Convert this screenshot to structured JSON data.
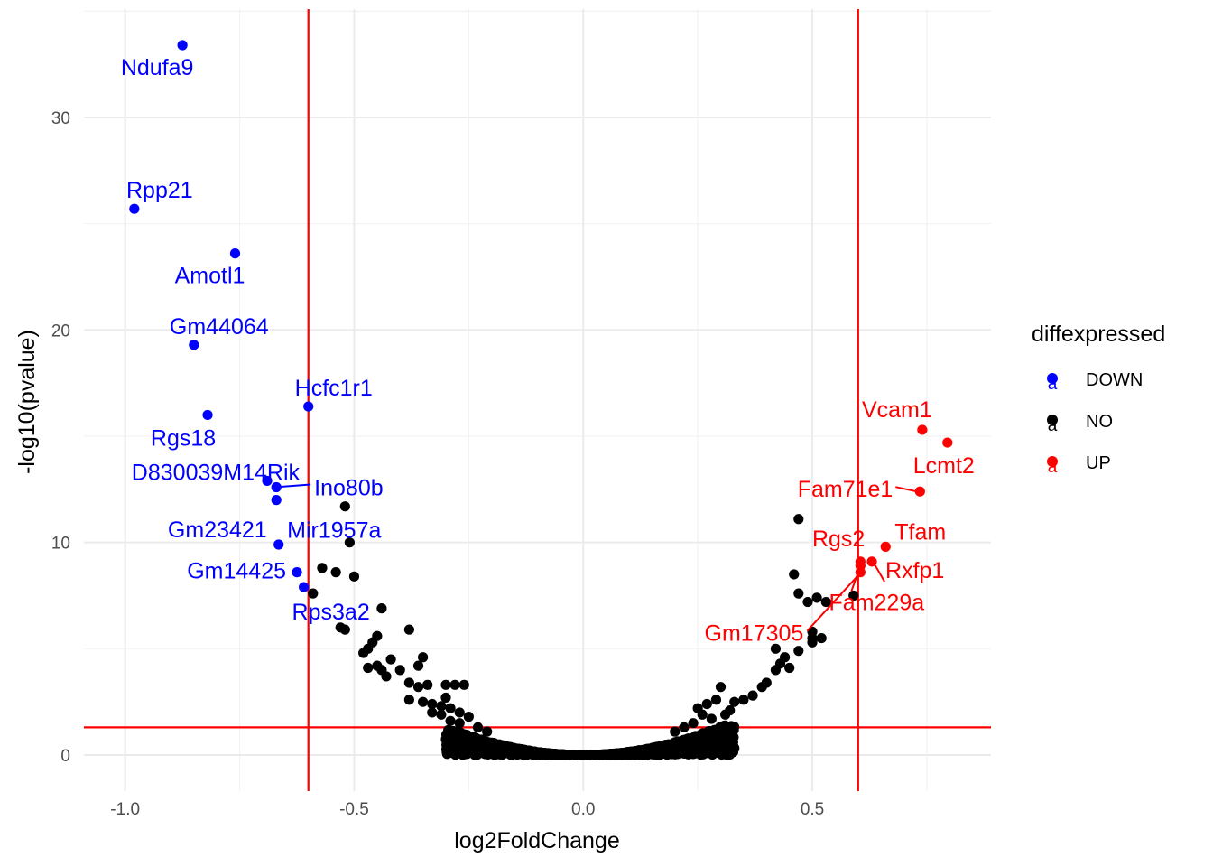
{
  "chart_data": {
    "type": "scatter",
    "xlabel": "log2FoldChange",
    "ylabel": "-log10(pvalue)",
    "xlim": [
      -1.09,
      0.89
    ],
    "ylim": [
      -1.7,
      35.1
    ],
    "x_ticks": [
      -1.0,
      -0.5,
      0.0,
      0.5
    ],
    "x_tick_labels": [
      "-1.0",
      "-0.5",
      "0.0",
      "0.5"
    ],
    "y_ticks": [
      0,
      10,
      20,
      30
    ],
    "y_tick_labels": [
      "0",
      "10",
      "20",
      "30"
    ],
    "grid": true,
    "thresholds": {
      "log2fc": [
        -0.6,
        0.6
      ],
      "neg_log10_p": 1.3,
      "color": "#ff0000"
    },
    "legend": {
      "title": "diffexpressed",
      "position": "right",
      "items": [
        {
          "label": "DOWN",
          "color": "#0000ff"
        },
        {
          "label": "NO",
          "color": "#000000"
        },
        {
          "label": "UP",
          "color": "#ff0000"
        }
      ]
    },
    "colors": {
      "DOWN": "#0000ff",
      "NO": "#000000",
      "UP": "#ff0000"
    },
    "labeled_points": [
      {
        "gene": "Ndufa9",
        "x": -0.875,
        "y": 33.4,
        "group": "DOWN"
      },
      {
        "gene": "Rpp21",
        "x": -0.98,
        "y": 25.7,
        "group": "DOWN"
      },
      {
        "gene": "Amotl1",
        "x": -0.76,
        "y": 23.6,
        "group": "DOWN"
      },
      {
        "gene": "Gm44064",
        "x": -0.85,
        "y": 19.3,
        "group": "DOWN"
      },
      {
        "gene": "Hcfc1r1",
        "x": -0.6,
        "y": 16.4,
        "group": "DOWN"
      },
      {
        "gene": "Rgs18",
        "x": -0.82,
        "y": 16.0,
        "group": "DOWN"
      },
      {
        "gene": "D830039M14Rik",
        "x": -0.69,
        "y": 12.9,
        "group": "DOWN"
      },
      {
        "gene": "Ino80b",
        "x": -0.67,
        "y": 12.6,
        "group": "DOWN"
      },
      {
        "gene": "Mir1957a",
        "x": -0.67,
        "y": 12.0,
        "group": "DOWN"
      },
      {
        "gene": "Gm23421",
        "x": -0.665,
        "y": 9.9,
        "group": "DOWN"
      },
      {
        "gene": "Gm14425",
        "x": -0.625,
        "y": 8.6,
        "group": "DOWN"
      },
      {
        "gene": "Rps3a2",
        "x": -0.61,
        "y": 7.9,
        "group": "DOWN"
      },
      {
        "gene": "Vcam1",
        "x": 0.74,
        "y": 15.3,
        "group": "UP"
      },
      {
        "gene": "Lcmt2",
        "x": 0.795,
        "y": 14.7,
        "group": "UP"
      },
      {
        "gene": "Fam71e1",
        "x": 0.735,
        "y": 12.4,
        "group": "UP"
      },
      {
        "gene": "Tfam",
        "x": 0.66,
        "y": 9.8,
        "group": "UP"
      },
      {
        "gene": "Rgs2",
        "x": 0.605,
        "y": 9.1,
        "group": "UP"
      },
      {
        "gene": "Rxfp1",
        "x": 0.63,
        "y": 9.1,
        "group": "UP"
      },
      {
        "gene": "Fam229a",
        "x": 0.605,
        "y": 8.9,
        "group": "UP"
      },
      {
        "gene": "Gm17305",
        "x": 0.605,
        "y": 8.6,
        "group": "UP"
      }
    ],
    "background_points": [
      [
        -0.52,
        11.7
      ],
      [
        -0.51,
        10.0
      ],
      [
        -0.5,
        8.4
      ],
      [
        -0.57,
        8.8
      ],
      [
        -0.54,
        8.6
      ],
      [
        -0.59,
        7.6
      ],
      [
        -0.44,
        6.9
      ],
      [
        -0.53,
        6.0
      ],
      [
        -0.52,
        5.9
      ],
      [
        -0.38,
        5.9
      ],
      [
        -0.45,
        5.6
      ],
      [
        -0.46,
        5.3
      ],
      [
        -0.47,
        5.0
      ],
      [
        -0.48,
        4.8
      ],
      [
        -0.35,
        4.6
      ],
      [
        -0.42,
        4.5
      ],
      [
        -0.36,
        4.2
      ],
      [
        -0.4,
        4.0
      ],
      [
        -0.44,
        4.0
      ],
      [
        -0.45,
        4.2
      ],
      [
        -0.47,
        4.1
      ],
      [
        -0.43,
        3.7
      ],
      [
        -0.38,
        3.4
      ],
      [
        -0.36,
        3.2
      ],
      [
        -0.34,
        3.3
      ],
      [
        -0.3,
        3.3
      ],
      [
        -0.28,
        3.3
      ],
      [
        -0.26,
        3.3
      ],
      [
        -0.3,
        2.7
      ],
      [
        -0.38,
        2.6
      ],
      [
        -0.35,
        2.5
      ],
      [
        -0.33,
        2.4
      ],
      [
        -0.31,
        2.3
      ],
      [
        -0.29,
        2.2
      ],
      [
        -0.27,
        2.0
      ],
      [
        -0.25,
        1.8
      ],
      [
        -0.33,
        2.0
      ],
      [
        -0.31,
        1.9
      ],
      [
        -0.29,
        1.6
      ],
      [
        -0.27,
        1.5
      ],
      [
        -0.23,
        1.3
      ],
      [
        -0.21,
        1.1
      ],
      [
        0.47,
        11.1
      ],
      [
        0.46,
        8.5
      ],
      [
        0.47,
        7.6
      ],
      [
        0.51,
        7.4
      ],
      [
        0.49,
        7.2
      ],
      [
        0.53,
        7.2
      ],
      [
        0.59,
        7.5
      ],
      [
        0.42,
        5.0
      ],
      [
        0.44,
        4.6
      ],
      [
        0.5,
        5.8
      ],
      [
        0.52,
        5.5
      ],
      [
        0.5,
        5.5
      ],
      [
        0.5,
        5.3
      ],
      [
        0.47,
        4.9
      ],
      [
        0.43,
        4.3
      ],
      [
        0.45,
        4.1
      ],
      [
        0.42,
        4.0
      ],
      [
        0.4,
        3.4
      ],
      [
        0.39,
        3.2
      ],
      [
        0.37,
        2.8
      ],
      [
        0.35,
        2.6
      ],
      [
        0.3,
        3.2
      ],
      [
        0.29,
        2.6
      ],
      [
        0.27,
        2.4
      ],
      [
        0.25,
        2.2
      ],
      [
        0.26,
        1.9
      ],
      [
        0.33,
        2.5
      ],
      [
        0.32,
        2.1
      ],
      [
        0.31,
        1.9
      ],
      [
        0.28,
        1.7
      ],
      [
        0.24,
        1.5
      ],
      [
        0.22,
        1.3
      ],
      [
        0.2,
        1.1
      ]
    ],
    "dense_cloud": {
      "x_range": [
        -0.3,
        0.33
      ],
      "y_max": 1.4,
      "count": 2200
    }
  }
}
